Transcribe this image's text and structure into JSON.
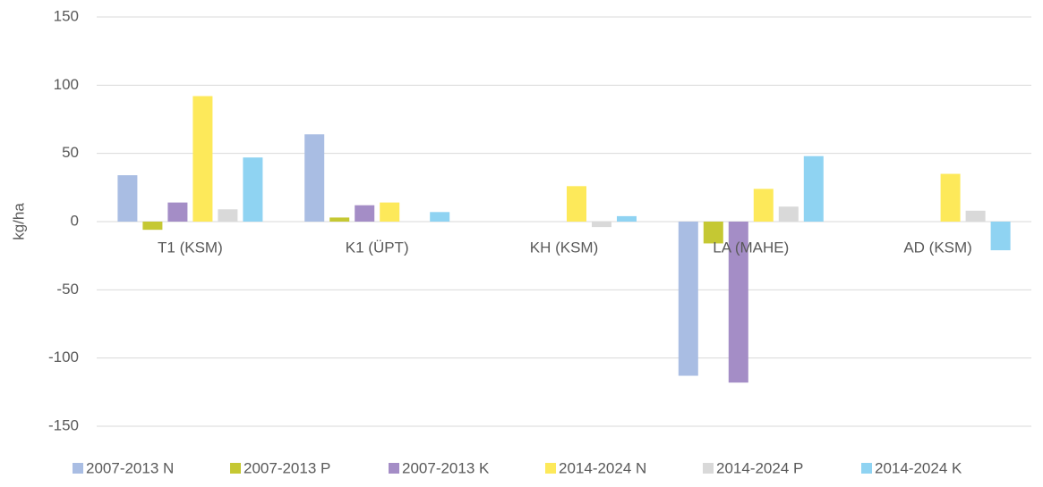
{
  "chart_data": {
    "type": "bar",
    "y_label": "kg/ha",
    "categories": [
      "T1 (KSM)",
      "K1 (ÜPT)",
      "KH (KSM)",
      "LA (MAHE)",
      "AD (KSM)"
    ],
    "series": [
      {
        "name": "2007-2013 N",
        "color": "#a9bde3",
        "values": [
          34,
          64,
          null,
          -113,
          null
        ]
      },
      {
        "name": "2007-2013 P",
        "color": "#c5c833",
        "values": [
          -6,
          3,
          null,
          -16,
          null
        ]
      },
      {
        "name": "2007-2013 K",
        "color": "#a48dc6",
        "values": [
          14,
          12,
          null,
          -118,
          null
        ]
      },
      {
        "name": "2014-2024 N",
        "color": "#fde95a",
        "values": [
          92,
          14,
          26,
          24,
          35
        ]
      },
      {
        "name": "2014-2024 P",
        "color": "#d9d9d9",
        "values": [
          9,
          null,
          -4,
          11,
          8
        ]
      },
      {
        "name": "2014-2024 K",
        "color": "#8fd3f2",
        "values": [
          47,
          7,
          4,
          48,
          -21
        ]
      }
    ],
    "ylim": [
      -150,
      150
    ],
    "yticks": [
      -150,
      -100,
      -50,
      0,
      50,
      100,
      150
    ],
    "grid": true
  }
}
